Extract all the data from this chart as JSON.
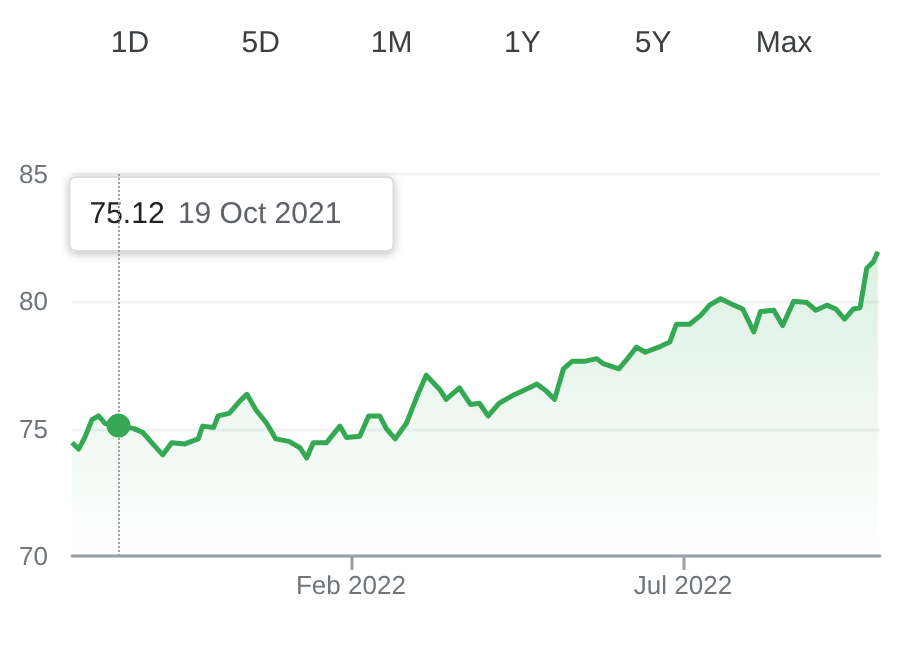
{
  "chart_data": {
    "type": "area",
    "color": "#34a853",
    "x": [
      "2021-09-28",
      "2021-10-01",
      "2021-10-04",
      "2021-10-07",
      "2021-10-10",
      "2021-10-13",
      "2021-10-19",
      "2021-10-26",
      "2021-10-30",
      "2021-11-03",
      "2021-11-08",
      "2021-11-12",
      "2021-11-18",
      "2021-11-24",
      "2021-11-26",
      "2021-12-01",
      "2021-12-03",
      "2021-12-08",
      "2021-12-13",
      "2021-12-16",
      "2021-12-20",
      "2021-12-25",
      "2021-12-29",
      "2022-01-04",
      "2022-01-09",
      "2022-01-12",
      "2022-01-15",
      "2022-01-21",
      "2022-01-27",
      "2022-01-30",
      "2022-02-05",
      "2022-02-09",
      "2022-02-14",
      "2022-02-17",
      "2022-02-21",
      "2022-02-26",
      "2022-03-03",
      "2022-03-07",
      "2022-03-13",
      "2022-03-16",
      "2022-03-22",
      "2022-03-27",
      "2022-03-31",
      "2022-04-04",
      "2022-04-09",
      "2022-04-15",
      "2022-04-20",
      "2022-04-26",
      "2022-04-30",
      "2022-05-04",
      "2022-05-08",
      "2022-05-12",
      "2022-05-18",
      "2022-05-23",
      "2022-05-26",
      "2022-06-02",
      "2022-06-05",
      "2022-06-10",
      "2022-06-14",
      "2022-06-20",
      "2022-06-25",
      "2022-06-28",
      "2022-07-04",
      "2022-07-09",
      "2022-07-13",
      "2022-07-18",
      "2022-07-24",
      "2022-07-28",
      "2022-08-02",
      "2022-08-05",
      "2022-08-11",
      "2022-08-15",
      "2022-08-20",
      "2022-08-26",
      "2022-08-30",
      "2022-09-04",
      "2022-09-08",
      "2022-09-12",
      "2022-09-16",
      "2022-09-19",
      "2022-09-22",
      "2022-09-25",
      "2022-09-27"
    ],
    "values": [
      74.45,
      74.2,
      74.7,
      75.35,
      75.5,
      75.2,
      75.12,
      75.0,
      74.85,
      74.45,
      73.97,
      74.45,
      74.4,
      74.6,
      75.1,
      75.05,
      75.5,
      75.6,
      76.1,
      76.35,
      75.75,
      75.2,
      74.6,
      74.5,
      74.25,
      73.85,
      74.45,
      74.45,
      75.1,
      74.65,
      74.7,
      75.5,
      75.5,
      75.0,
      74.6,
      75.2,
      76.3,
      77.1,
      76.55,
      76.15,
      76.6,
      75.95,
      76.0,
      75.5,
      76.0,
      76.3,
      76.5,
      76.75,
      76.5,
      76.15,
      77.35,
      77.65,
      77.65,
      77.75,
      77.55,
      77.35,
      77.65,
      78.2,
      78.0,
      78.2,
      78.4,
      79.1,
      79.1,
      79.45,
      79.85,
      80.1,
      79.85,
      79.7,
      78.8,
      79.6,
      79.65,
      79.05,
      80.0,
      79.95,
      79.65,
      79.85,
      79.7,
      79.3,
      79.7,
      79.75,
      81.3,
      81.55,
      81.95
    ],
    "xlim": [
      "2021-09-28",
      "2022-09-28"
    ],
    "xticks": [
      {
        "value": "2022-02-01",
        "label": "Feb 2022"
      },
      {
        "value": "2022-07-01",
        "label": "Jul 2022"
      }
    ],
    "ylim": [
      70,
      85
    ],
    "yticks": [
      70,
      75,
      80,
      85
    ],
    "grid": "y",
    "marker": "none",
    "ref_lines": [
      {
        "axis": "x",
        "value": "2021-10-19",
        "color": "#9aa0a6",
        "line_style": "dotted"
      }
    ],
    "annotations": [
      "1D",
      "5D",
      "1M",
      "1Y",
      "5Y",
      "Max",
      "75.12 19 Oct 2021"
    ]
  }
}
